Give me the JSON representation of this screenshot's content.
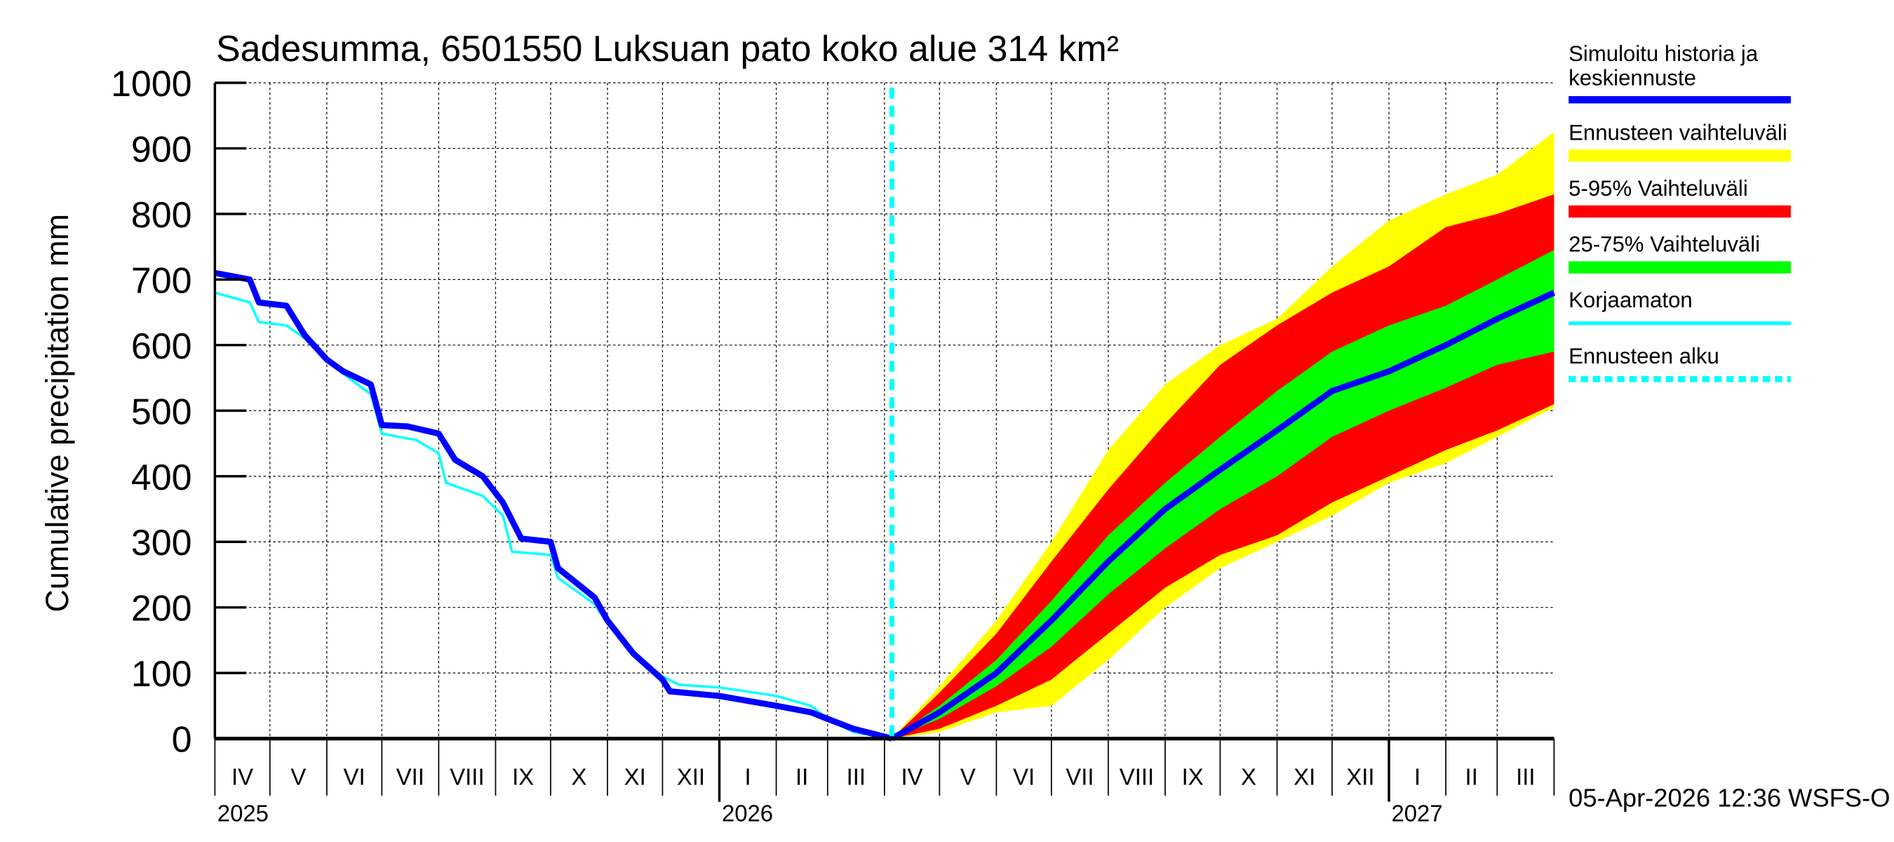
{
  "chart_data": {
    "type": "area",
    "title": "Sadesumma, 6501550 Luksuan pato koko alue 314 km²",
    "ylabel": "Cumulative precipitation   mm",
    "xlabel": "",
    "ylim": [
      0,
      1000
    ],
    "yticks": [
      0,
      100,
      200,
      300,
      400,
      500,
      600,
      700,
      800,
      900,
      1000
    ],
    "xlim": [
      "2025-04-01",
      "2027-04-01"
    ],
    "grid": true,
    "legend_position": "right",
    "month_labels": [
      "IV",
      "V",
      "VI",
      "VII",
      "VIII",
      "IX",
      "X",
      "XI",
      "XII",
      "I",
      "II",
      "III",
      "IV",
      "V",
      "VI",
      "VII",
      "VIII",
      "IX",
      "X",
      "XI",
      "XII",
      "I",
      "II",
      "III"
    ],
    "year_labels": [
      {
        "label": "2025",
        "date": "2025-04-01"
      },
      {
        "label": "2026",
        "date": "2026-01-01"
      },
      {
        "label": "2027",
        "date": "2027-01-01"
      }
    ],
    "forecast_start": "2026-04-05",
    "legend": [
      {
        "label": "Simuloitu historia ja keskiennuste",
        "color": "#0000ff",
        "style": "thick"
      },
      {
        "label": "Ennusteen vaihteluväli",
        "color": "#ffff00",
        "style": "band"
      },
      {
        "label": "5-95% Vaihteluväli",
        "color": "#ff0000",
        "style": "band"
      },
      {
        "label": "25-75% Vaihteluväli",
        "color": "#00ff00",
        "style": "band"
      },
      {
        "label": "Korjaamaton",
        "color": "#00ffff",
        "style": "thin"
      },
      {
        "label": "Ennusteen alku",
        "color": "#00ffff",
        "style": "dashed"
      }
    ],
    "history": {
      "name": "Simuloitu historia ja keskiennuste",
      "x": [
        "2025-04-01",
        "2025-04-20",
        "2025-04-25",
        "2025-05-10",
        "2025-05-20",
        "2025-06-01",
        "2025-06-10",
        "2025-06-25",
        "2025-07-01",
        "2025-07-15",
        "2025-08-01",
        "2025-08-10",
        "2025-08-25",
        "2025-09-05",
        "2025-09-15",
        "2025-10-01",
        "2025-10-05",
        "2025-10-25",
        "2025-11-01",
        "2025-11-15",
        "2025-12-01",
        "2025-12-05",
        "2026-01-01",
        "2026-02-01",
        "2026-02-20",
        "2026-03-01",
        "2026-03-15",
        "2026-04-05"
      ],
      "y": [
        710,
        700,
        665,
        660,
        615,
        578,
        560,
        540,
        478,
        476,
        465,
        425,
        400,
        360,
        305,
        300,
        260,
        215,
        180,
        130,
        90,
        72,
        65,
        50,
        40,
        30,
        15,
        0
      ]
    },
    "uncorrected": {
      "name": "Korjaamaton",
      "x": [
        "2025-04-01",
        "2025-04-20",
        "2025-04-25",
        "2025-05-10",
        "2025-05-20",
        "2025-06-01",
        "2025-06-25",
        "2025-07-01",
        "2025-07-20",
        "2025-08-01",
        "2025-08-05",
        "2025-08-25",
        "2025-09-05",
        "2025-09-10",
        "2025-10-01",
        "2025-10-05",
        "2025-10-25",
        "2025-11-01",
        "2025-11-15",
        "2025-12-01",
        "2025-12-10",
        "2026-01-01",
        "2026-02-01",
        "2026-02-20",
        "2026-03-01",
        "2026-03-15",
        "2026-04-05"
      ],
      "y": [
        680,
        665,
        635,
        630,
        610,
        575,
        525,
        465,
        455,
        435,
        390,
        370,
        340,
        285,
        280,
        245,
        205,
        175,
        130,
        95,
        82,
        78,
        65,
        50,
        30,
        10,
        0
      ]
    },
    "forecast": {
      "x": [
        "2026-04-05",
        "2026-05-01",
        "2026-06-01",
        "2026-07-01",
        "2026-08-01",
        "2026-09-01",
        "2026-10-01",
        "2026-11-01",
        "2026-12-01",
        "2027-01-01",
        "2027-02-01",
        "2027-03-01",
        "2027-04-01"
      ],
      "min": [
        0,
        10,
        40,
        50,
        120,
        200,
        260,
        300,
        340,
        390,
        420,
        460,
        505
      ],
      "p5": [
        0,
        15,
        50,
        90,
        160,
        230,
        280,
        310,
        360,
        400,
        440,
        470,
        510
      ],
      "p25": [
        0,
        30,
        80,
        140,
        220,
        290,
        350,
        400,
        460,
        500,
        535,
        570,
        590
      ],
      "median": [
        0,
        40,
        100,
        180,
        270,
        350,
        410,
        470,
        530,
        560,
        600,
        640,
        680
      ],
      "p75": [
        0,
        50,
        120,
        210,
        310,
        390,
        460,
        530,
        590,
        630,
        660,
        700,
        745
      ],
      "p95": [
        0,
        70,
        160,
        270,
        380,
        480,
        570,
        630,
        680,
        720,
        780,
        800,
        830
      ],
      "max": [
        0,
        80,
        180,
        300,
        440,
        540,
        600,
        640,
        720,
        790,
        830,
        860,
        925
      ]
    }
  },
  "footer": {
    "timestamp": "05-Apr-2026 12:36 WSFS-O"
  }
}
